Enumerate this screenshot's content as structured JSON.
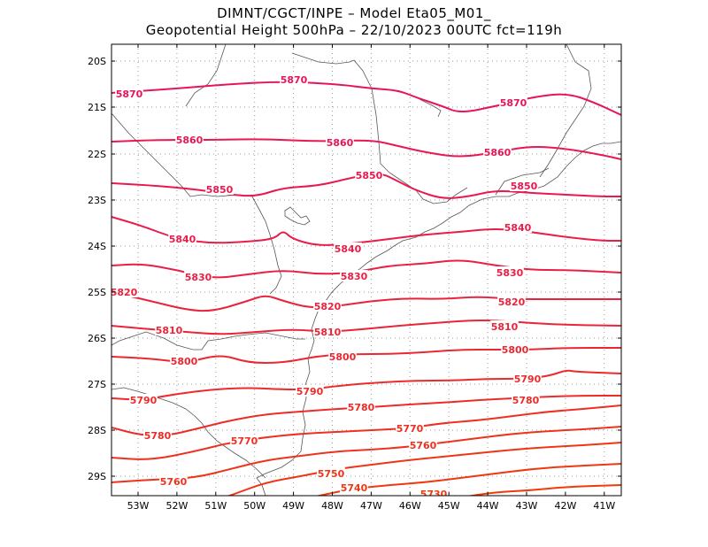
{
  "title_line1": "DIMNT/CGCT/INPE –  Model Eta05_M01_",
  "title_line2": "Geopotential Height 500hPa –  22/10/2023 00UTC fct=119h",
  "lat_labels": [
    "20S",
    "21S",
    "22S",
    "23S",
    "24S",
    "25S",
    "26S",
    "27S",
    "28S",
    "29S"
  ],
  "lon_labels": [
    "53W",
    "52W",
    "51W",
    "50W",
    "49W",
    "48W",
    "47W",
    "46W",
    "45W",
    "44W",
    "43W",
    "42W",
    "41W"
  ],
  "contour_color_high": "#e8145a",
  "contour_color_low": "#f03a0a",
  "contours": [
    {
      "value": "5870",
      "labels": [
        "5870",
        "5870",
        "5870"
      ]
    },
    {
      "value": "5860",
      "labels": [
        "5860",
        "5860",
        "5860"
      ]
    },
    {
      "value": "5850",
      "labels": [
        "5850",
        "5850",
        "5850"
      ]
    },
    {
      "value": "5840",
      "labels": [
        "5840",
        "5840",
        "5840"
      ]
    },
    {
      "value": "5830",
      "labels": [
        "5830",
        "5830",
        "5830"
      ]
    },
    {
      "value": "5820",
      "labels": [
        "5820",
        "5820",
        "5820"
      ]
    },
    {
      "value": "5810",
      "labels": [
        "5810",
        "5810",
        "5810"
      ]
    },
    {
      "value": "5800",
      "labels": [
        "5800",
        "5800",
        "5800"
      ]
    },
    {
      "value": "5790",
      "labels": [
        "5790",
        "5790",
        "5790"
      ]
    },
    {
      "value": "5780",
      "labels": [
        "5780",
        "5780",
        "5780"
      ]
    },
    {
      "value": "5770",
      "labels": [
        "5770",
        "5770"
      ]
    },
    {
      "value": "5760",
      "labels": [
        "5760",
        "5760"
      ]
    },
    {
      "value": "5750",
      "labels": [
        "5750"
      ]
    },
    {
      "value": "5740",
      "labels": [
        "5740"
      ]
    },
    {
      "value": "5730",
      "labels": [
        "5730"
      ]
    }
  ]
}
